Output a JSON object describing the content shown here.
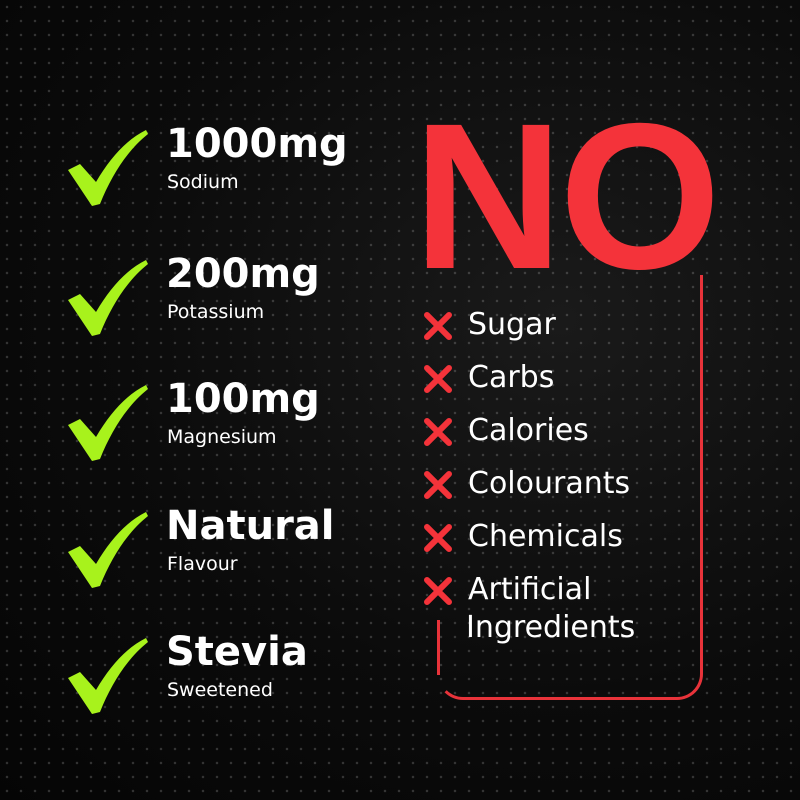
{
  "colors": {
    "accent_green": "#a8f21c",
    "accent_red": "#f4333a",
    "background": "#0b0b0b"
  },
  "features": [
    {
      "icon": "check-icon",
      "title": "1000mg",
      "subtitle": "Sodium"
    },
    {
      "icon": "check-icon",
      "title": "200mg",
      "subtitle": "Potassium"
    },
    {
      "icon": "check-icon",
      "title": "100mg",
      "subtitle": "Magnesium"
    },
    {
      "icon": "check-icon",
      "title": "Natural",
      "subtitle": "Flavour"
    },
    {
      "icon": "check-icon",
      "title": "Stevia",
      "subtitle": "Sweetened"
    }
  ],
  "no_heading": "NO",
  "no_items": [
    {
      "icon": "cross-icon",
      "label": "Sugar"
    },
    {
      "icon": "cross-icon",
      "label": "Carbs"
    },
    {
      "icon": "cross-icon",
      "label": "Calories"
    },
    {
      "icon": "cross-icon",
      "label": "Colourants"
    },
    {
      "icon": "cross-icon",
      "label": "Chemicals"
    },
    {
      "icon": "cross-icon",
      "label": "Artificial",
      "label_line2": "Ingredients"
    }
  ]
}
